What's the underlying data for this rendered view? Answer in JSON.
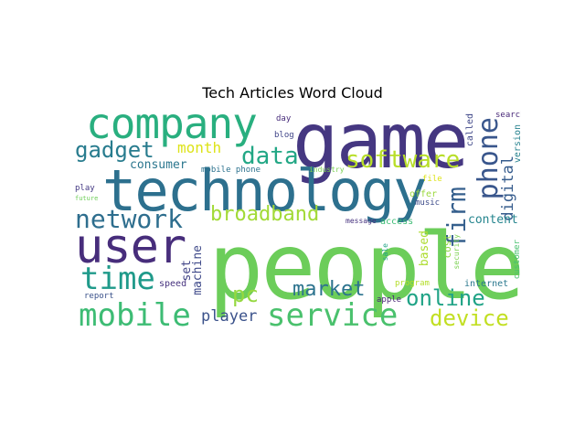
{
  "title": "Tech Articles Word Cloud",
  "words": [
    {
      "text": "people",
      "color": "#6ccd5a"
    },
    {
      "text": "game",
      "color": "#453781"
    },
    {
      "text": "technology",
      "color": "#2d708e"
    },
    {
      "text": "company",
      "color": "#29af7f"
    },
    {
      "text": "user",
      "color": "#472d7b"
    },
    {
      "text": "phone",
      "color": "#39568c"
    },
    {
      "text": "mobile",
      "color": "#3dbc74"
    },
    {
      "text": "service",
      "color": "#4ac16d"
    },
    {
      "text": "network",
      "color": "#2e6e8e"
    },
    {
      "text": "time",
      "color": "#1f9a8a"
    },
    {
      "text": "software",
      "color": "#b8de29"
    },
    {
      "text": "broadband",
      "color": "#a2da37"
    },
    {
      "text": "firm",
      "color": "#355f8d"
    },
    {
      "text": "online",
      "color": "#20a386"
    },
    {
      "text": "device",
      "color": "#c2df23"
    },
    {
      "text": "gadget",
      "color": "#287c8e"
    },
    {
      "text": "data",
      "color": "#22a785"
    },
    {
      "text": "market",
      "color": "#2c738e"
    },
    {
      "text": "pc",
      "color": "#95d840"
    },
    {
      "text": "player",
      "color": "#3b528b"
    },
    {
      "text": "digital",
      "color": "#365c8d"
    },
    {
      "text": "month",
      "color": "#dde318"
    },
    {
      "text": "content",
      "color": "#25858e"
    },
    {
      "text": "consumer",
      "color": "#2a768e"
    },
    {
      "text": "machine",
      "color": "#3e4989"
    },
    {
      "text": "set",
      "color": "#414487"
    },
    {
      "text": "based",
      "color": "#addc30"
    },
    {
      "text": "cost",
      "color": "#8fd744"
    },
    {
      "text": "security",
      "color": "#7ad151"
    },
    {
      "text": "internet",
      "color": "#2a788e"
    },
    {
      "text": "called",
      "color": "#3f4788"
    },
    {
      "text": "version",
      "color": "#26828e"
    },
    {
      "text": "search",
      "color": "#482878"
    },
    {
      "text": "customer",
      "color": "#48c16e"
    },
    {
      "text": "speed",
      "color": "#46327e"
    },
    {
      "text": "report",
      "color": "#3b528b"
    },
    {
      "text": "apple",
      "color": "#482576"
    },
    {
      "text": "access",
      "color": "#3dbc74"
    },
    {
      "text": "message",
      "color": "#46327e"
    },
    {
      "text": "sale",
      "color": "#20a386"
    },
    {
      "text": "program",
      "color": "#b5de2b"
    },
    {
      "text": "offer",
      "color": "#9bd93c"
    },
    {
      "text": "music",
      "color": "#3e4c8a"
    },
    {
      "text": "file",
      "color": "#dde318"
    },
    {
      "text": "industry",
      "color": "#7ad151"
    },
    {
      "text": "mobile phone",
      "color": "#2c728e"
    },
    {
      "text": "day",
      "color": "#472c7a"
    },
    {
      "text": "blog",
      "color": "#404588"
    },
    {
      "text": "play",
      "color": "#443983"
    },
    {
      "text": "future",
      "color": "#6ece58"
    }
  ]
}
